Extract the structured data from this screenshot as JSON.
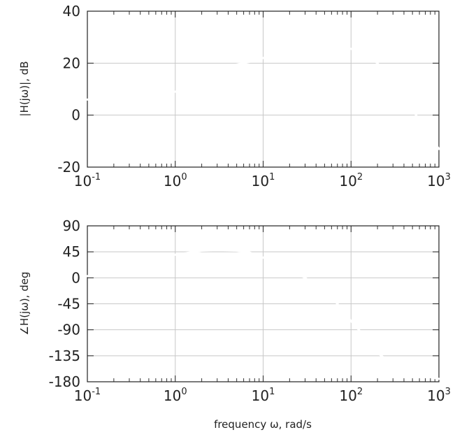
{
  "chart_data": [
    {
      "type": "line",
      "ylabel": "|H(jω)|, dB",
      "xlabel": "",
      "x_scale": "log",
      "xlim": [
        0.1,
        1000
      ],
      "ylim": [
        -20,
        40
      ],
      "x_ticks": [
        0.1,
        1,
        10,
        100,
        1000
      ],
      "x_tick_labels": [
        {
          "base": "10",
          "exp": "-1"
        },
        {
          "base": "10",
          "exp": "0"
        },
        {
          "base": "10",
          "exp": "1"
        },
        {
          "base": "10",
          "exp": "2"
        },
        {
          "base": "10",
          "exp": "3"
        }
      ],
      "y_ticks": [
        -20,
        0,
        20,
        40
      ],
      "y_tick_labels": [
        "-20",
        "0",
        "20",
        "40"
      ],
      "grid": true,
      "series": [
        {
          "color": "#ffffff",
          "x": [
            0.1,
            0.3,
            1,
            2,
            3,
            5,
            7,
            10,
            20,
            30,
            50,
            70,
            100,
            150,
            200,
            300,
            500,
            700,
            1000
          ],
          "y": [
            6,
            6.5,
            9,
            14,
            17,
            19.5,
            20.5,
            22,
            24,
            25,
            25.5,
            26,
            25.5,
            23,
            20,
            12,
            2,
            -5,
            -13
          ]
        }
      ]
    },
    {
      "type": "line",
      "ylabel": "∠H(jω), deg",
      "xlabel": "frequency ω, rad/s",
      "x_scale": "log",
      "xlim": [
        0.1,
        1000
      ],
      "ylim": [
        -180,
        90
      ],
      "x_ticks": [
        0.1,
        1,
        10,
        100,
        1000
      ],
      "x_tick_labels": [
        {
          "base": "10",
          "exp": "-1"
        },
        {
          "base": "10",
          "exp": "0"
        },
        {
          "base": "10",
          "exp": "1"
        },
        {
          "base": "10",
          "exp": "2"
        },
        {
          "base": "10",
          "exp": "3"
        }
      ],
      "y_ticks": [
        -180,
        -135,
        -90,
        -45,
        0,
        45,
        90
      ],
      "y_tick_labels": [
        "-180",
        "-135",
        "-90",
        "-45",
        "0",
        "45",
        "90"
      ],
      "grid": true,
      "series": [
        {
          "color": "#ffffff",
          "x": [
            0.1,
            0.3,
            1,
            2,
            3,
            5,
            7,
            10,
            20,
            30,
            50,
            70,
            100,
            150,
            200,
            300,
            500,
            1000
          ],
          "y": [
            3,
            15,
            40,
            47,
            48,
            47,
            44,
            35,
            12,
            0,
            -25,
            -45,
            -75,
            -105,
            -130,
            -150,
            -165,
            -175
          ]
        }
      ]
    }
  ]
}
